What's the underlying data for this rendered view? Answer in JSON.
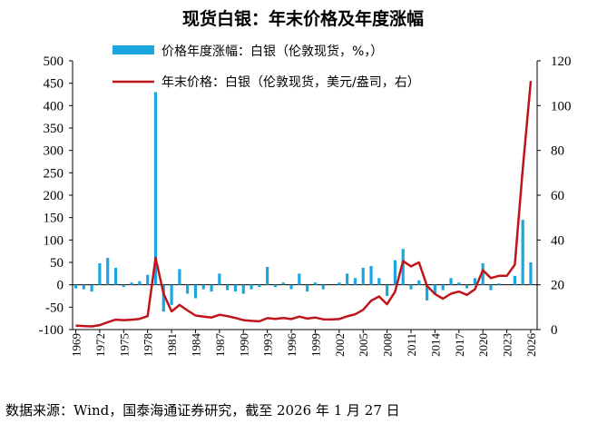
{
  "chart_data": {
    "type": "bar+line",
    "title": "现货白银：年末价格及年度涨幅",
    "source": "数据来源：Wind，国泰海通证券研究，截至 2026 年 1 月 27 日",
    "bar_color": "#1aa7e0",
    "line_color": "#c0141a",
    "left_axis": {
      "ylim": [
        -100,
        500
      ],
      "ticks": [
        -100,
        -50,
        0,
        50,
        100,
        150,
        200,
        250,
        300,
        350,
        400,
        450,
        500
      ]
    },
    "right_axis": {
      "ylim": [
        0,
        120
      ],
      "ticks": [
        0,
        20,
        40,
        60,
        80,
        100,
        120
      ]
    },
    "x_tick_labels": [
      "1969",
      "1972",
      "1975",
      "1978",
      "1981",
      "1984",
      "1987",
      "1990",
      "1993",
      "1996",
      "1999",
      "2002",
      "2005",
      "2008",
      "2011",
      "2014",
      "2017",
      "2020",
      "2023",
      "2026"
    ],
    "series": [
      {
        "name": "价格年度涨幅：白银（伦敦现货，%，）",
        "type": "bar",
        "axis": "left",
        "x": [
          1969,
          1970,
          1971,
          1972,
          1973,
          1974,
          1975,
          1976,
          1977,
          1978,
          1979,
          1980,
          1981,
          1982,
          1983,
          1984,
          1985,
          1986,
          1987,
          1988,
          1989,
          1990,
          1991,
          1992,
          1993,
          1994,
          1995,
          1996,
          1997,
          1998,
          1999,
          2000,
          2001,
          2002,
          2003,
          2004,
          2005,
          2006,
          2007,
          2008,
          2009,
          2010,
          2011,
          2012,
          2013,
          2014,
          2015,
          2016,
          2017,
          2018,
          2019,
          2020,
          2021,
          2022,
          2023,
          2024,
          2025,
          2026
        ],
        "values": [
          -8,
          -10,
          -15,
          48,
          60,
          38,
          -5,
          5,
          8,
          22,
          430,
          -60,
          -45,
          35,
          -20,
          -30,
          -10,
          -15,
          25,
          -12,
          -15,
          -20,
          -10,
          -5,
          40,
          -5,
          5,
          -10,
          25,
          -15,
          5,
          -10,
          0,
          5,
          25,
          15,
          38,
          42,
          15,
          -25,
          55,
          80,
          -10,
          10,
          -35,
          -20,
          -12,
          15,
          5,
          -8,
          15,
          48,
          -12,
          3,
          0,
          20,
          145,
          50
        ]
      },
      {
        "name": "年末价格：白银（伦敦现货，美元/盎司，右）",
        "type": "line",
        "axis": "right",
        "x": [
          1969,
          1970,
          1971,
          1972,
          1973,
          1974,
          1975,
          1976,
          1977,
          1978,
          1979,
          1980,
          1981,
          1982,
          1983,
          1984,
          1985,
          1986,
          1987,
          1988,
          1989,
          1990,
          1991,
          1992,
          1993,
          1994,
          1995,
          1996,
          1997,
          1998,
          1999,
          2000,
          2001,
          2002,
          2003,
          2004,
          2005,
          2006,
          2007,
          2008,
          2009,
          2010,
          2011,
          2012,
          2013,
          2014,
          2015,
          2016,
          2017,
          2018,
          2019,
          2020,
          2021,
          2022,
          2023,
          2024,
          2025,
          2026
        ],
        "values": [
          1.8,
          1.6,
          1.4,
          2.0,
          3.3,
          4.4,
          4.2,
          4.4,
          4.8,
          6.0,
          32.0,
          16.0,
          8.1,
          11.0,
          8.5,
          6.3,
          5.8,
          5.4,
          6.6,
          6.0,
          5.2,
          4.2,
          3.9,
          3.7,
          5.1,
          4.8,
          5.2,
          4.7,
          5.8,
          4.9,
          5.4,
          4.6,
          4.5,
          4.7,
          5.9,
          6.8,
          8.8,
          12.9,
          14.8,
          11.3,
          16.9,
          30.6,
          28.2,
          30.0,
          19.5,
          15.9,
          13.8,
          16.0,
          17.0,
          15.5,
          18.0,
          26.5,
          23.0,
          24.0,
          24.0,
          29.0,
          72.0,
          111.0
        ]
      }
    ],
    "legend": [
      {
        "label": "价格年度涨幅：白银（伦敦现货，%，）",
        "kind": "bar"
      },
      {
        "label": "年末价格：白银（伦敦现货，美元/盎司，右）",
        "kind": "line"
      }
    ]
  }
}
